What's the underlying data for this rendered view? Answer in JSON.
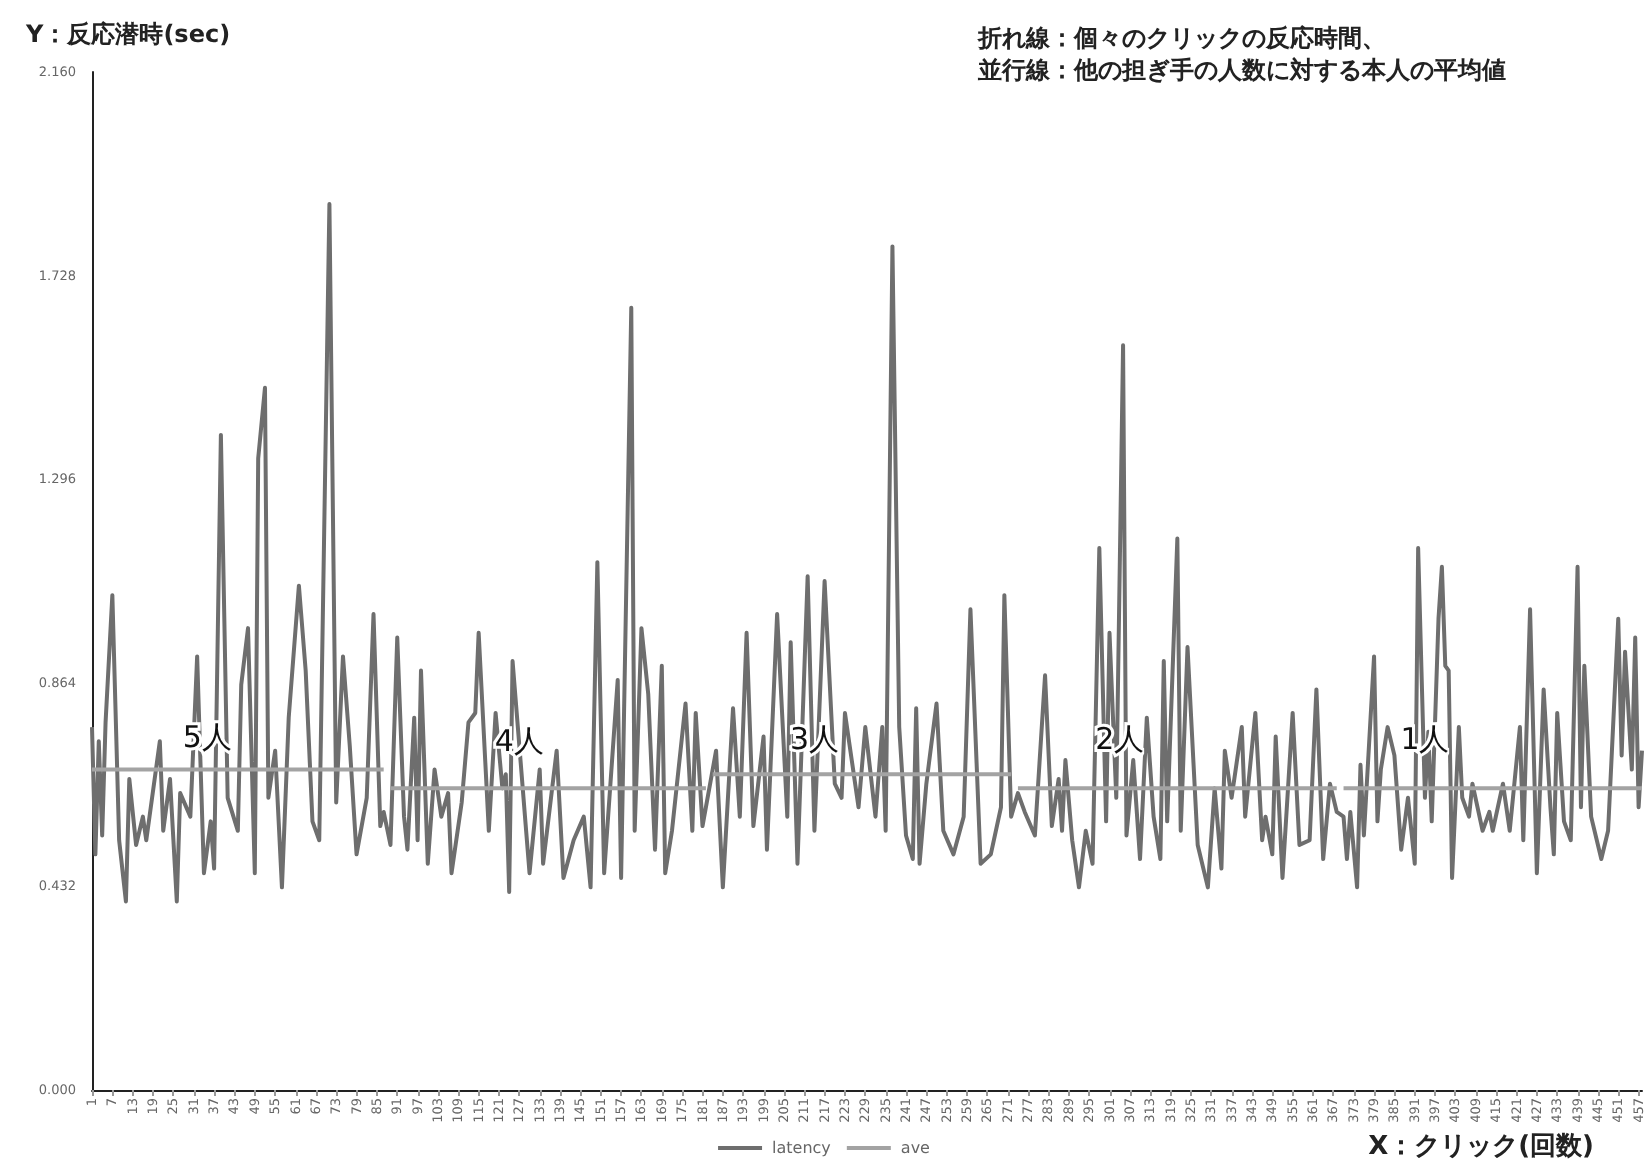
{
  "chart_data": {
    "type": "line",
    "title": "折れ線：個々のクリックの反応時間、",
    "subtitle": "並行線：他の担ぎ手の人数に対する本人の平均値",
    "xlabel": "X：クリック(回数)",
    "ylabel": "Y：反応潜時(sec)",
    "xlim": [
      1,
      458
    ],
    "xticks": [
      1,
      7,
      13,
      19,
      25,
      31,
      37,
      43,
      49,
      55,
      61,
      67,
      73,
      79,
      85,
      91,
      97,
      103,
      109,
      115,
      121,
      127,
      133,
      139,
      145,
      151,
      157,
      163,
      169,
      175,
      181,
      187,
      193,
      199,
      205,
      211,
      217,
      223,
      229,
      235,
      241,
      247,
      253,
      259,
      265,
      271,
      277,
      283,
      289,
      295,
      301,
      307,
      313,
      319,
      325,
      331,
      337,
      343,
      349,
      355,
      361,
      367,
      373,
      379,
      385,
      391,
      397,
      403,
      409,
      415,
      421,
      427,
      433,
      439,
      445,
      451,
      457
    ],
    "ylim": [
      0,
      2.16
    ],
    "yticks": [
      {
        "value": 0,
        "label": "0.000"
      },
      {
        "value": 0.432,
        "label": "0.432"
      },
      {
        "value": 0.864,
        "label": "0.864"
      },
      {
        "value": 1.296,
        "label": "1.296"
      },
      {
        "value": 1.728,
        "label": "1.728"
      },
      {
        "value": 2.16,
        "label": "2.160"
      }
    ],
    "grid": false,
    "legend": "bottom",
    "annotations": [
      {
        "text": "5人",
        "x": 35,
        "y": 0.75
      },
      {
        "text": "4人",
        "x": 127,
        "y": 0.74
      },
      {
        "text": "3人",
        "x": 214,
        "y": 0.745
      },
      {
        "text": "2人",
        "x": 304,
        "y": 0.745
      },
      {
        "text": "1人",
        "x": 394,
        "y": 0.745
      }
    ],
    "series": [
      {
        "name": "latency",
        "color": "#6e6e6e",
        "x": [
          1,
          2,
          3,
          4,
          5,
          7,
          9,
          11,
          12,
          14,
          16,
          17,
          21,
          22,
          24,
          26,
          27,
          30,
          32,
          34,
          36,
          37,
          39,
          41,
          44,
          45,
          47,
          49,
          50,
          52,
          53,
          55,
          57,
          59,
          62,
          64,
          66,
          68,
          71,
          73,
          75,
          77,
          79,
          82,
          84,
          86,
          87,
          89,
          91,
          93,
          94,
          96,
          97,
          98,
          100,
          102,
          104,
          106,
          107,
          110,
          112,
          114,
          115,
          118,
          120,
          122,
          123,
          124,
          125,
          129,
          130,
          133,
          134,
          138,
          140,
          143,
          146,
          148,
          150,
          152,
          156,
          157,
          160,
          161,
          163,
          165,
          167,
          169,
          170,
          172,
          176,
          178,
          179,
          181,
          185,
          187,
          190,
          192,
          194,
          196,
          199,
          200,
          203,
          206,
          207,
          209,
          212,
          214,
          217,
          220,
          222,
          223,
          227,
          229,
          232,
          234,
          235,
          237,
          239,
          241,
          243,
          244,
          245,
          247,
          250,
          252,
          255,
          258,
          260,
          263,
          266,
          269,
          270,
          272,
          274,
          276,
          279,
          282,
          284,
          286,
          287,
          288,
          290,
          292,
          294,
          296,
          298,
          300,
          301,
          303,
          305,
          306,
          308,
          310,
          312,
          314,
          316,
          317,
          318,
          321,
          322,
          324,
          327,
          330,
          332,
          334,
          335,
          337,
          340,
          341,
          344,
          346,
          347,
          349,
          350,
          352,
          355,
          357,
          360,
          362,
          364,
          366,
          368,
          370,
          371,
          372,
          374,
          375,
          376,
          379,
          380,
          381,
          383,
          385,
          387,
          389,
          391,
          392,
          394,
          395,
          396,
          398,
          399,
          400,
          401,
          402,
          404,
          405,
          407,
          408,
          411,
          413,
          414,
          417,
          419,
          422,
          423,
          425,
          427,
          429,
          431,
          432,
          433,
          435,
          437,
          439,
          440,
          441,
          443,
          446,
          448,
          451,
          452,
          453,
          455,
          456,
          457,
          458
        ],
        "values": [
          0.77,
          0.5,
          0.74,
          0.54,
          0.78,
          1.05,
          0.53,
          0.4,
          0.66,
          0.52,
          0.58,
          0.53,
          0.74,
          0.55,
          0.66,
          0.4,
          0.63,
          0.58,
          0.92,
          0.46,
          0.57,
          0.47,
          1.39,
          0.62,
          0.55,
          0.86,
          0.98,
          0.46,
          1.34,
          1.49,
          0.62,
          0.72,
          0.43,
          0.79,
          1.07,
          0.89,
          0.57,
          0.53,
          1.88,
          0.61,
          0.92,
          0.73,
          0.5,
          0.62,
          1.01,
          0.56,
          0.59,
          0.52,
          0.96,
          0.58,
          0.51,
          0.79,
          0.53,
          0.89,
          0.48,
          0.68,
          0.58,
          0.63,
          0.46,
          0.61,
          0.78,
          0.8,
          0.97,
          0.55,
          0.8,
          0.64,
          0.67,
          0.42,
          0.91,
          0.55,
          0.46,
          0.68,
          0.48,
          0.72,
          0.45,
          0.53,
          0.58,
          0.43,
          1.12,
          0.46,
          0.87,
          0.45,
          1.66,
          0.55,
          0.98,
          0.84,
          0.51,
          0.9,
          0.46,
          0.55,
          0.82,
          0.55,
          0.8,
          0.56,
          0.72,
          0.43,
          0.81,
          0.58,
          0.97,
          0.56,
          0.75,
          0.51,
          1.01,
          0.58,
          0.95,
          0.48,
          1.09,
          0.55,
          1.08,
          0.65,
          0.62,
          0.8,
          0.6,
          0.77,
          0.58,
          0.77,
          0.55,
          1.79,
          0.77,
          0.54,
          0.49,
          0.81,
          0.48,
          0.65,
          0.82,
          0.55,
          0.5,
          0.58,
          1.02,
          0.48,
          0.5,
          0.6,
          1.05,
          0.58,
          0.63,
          0.59,
          0.54,
          0.88,
          0.56,
          0.66,
          0.55,
          0.7,
          0.53,
          0.43,
          0.55,
          0.48,
          1.15,
          0.57,
          0.97,
          0.62,
          1.58,
          0.54,
          0.7,
          0.49,
          0.79,
          0.58,
          0.49,
          0.91,
          0.57,
          1.17,
          0.55,
          0.94,
          0.52,
          0.43,
          0.64,
          0.47,
          0.72,
          0.62,
          0.77,
          0.58,
          0.8,
          0.53,
          0.58,
          0.5,
          0.75,
          0.45,
          0.8,
          0.52,
          0.53,
          0.85,
          0.49,
          0.65,
          0.59,
          0.58,
          0.49,
          0.59,
          0.43,
          0.69,
          0.54,
          0.92,
          0.57,
          0.68,
          0.77,
          0.71,
          0.51,
          0.62,
          0.48,
          1.15,
          0.62,
          0.76,
          0.57,
          1.0,
          1.11,
          0.9,
          0.89,
          0.45,
          0.77,
          0.62,
          0.58,
          0.65,
          0.55,
          0.59,
          0.55,
          0.65,
          0.55,
          0.77,
          0.53,
          1.02,
          0.46,
          0.85,
          0.6,
          0.5,
          0.8,
          0.57,
          0.53,
          1.11,
          0.6,
          0.9,
          0.58,
          0.49,
          0.55,
          1.0,
          0.71,
          0.93,
          0.68,
          0.96,
          0.6,
          0.72
        ]
      },
      {
        "name": "ave",
        "color": "#a3a3a3",
        "x": [
          1,
          87,
          88,
          89,
          182,
          183,
          184,
          272,
          273,
          274,
          368,
          369,
          370,
          458
        ],
        "values": [
          0.68,
          0.68,
          null,
          0.64,
          0.64,
          null,
          0.67,
          0.67,
          null,
          0.64,
          0.64,
          null,
          0.64,
          0.64
        ]
      }
    ]
  }
}
